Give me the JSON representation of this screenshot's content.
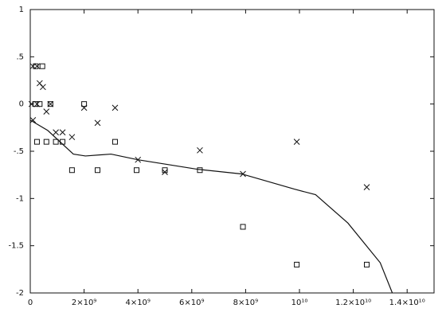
{
  "chart_data": {
    "type": "scatter",
    "xlim": [
      0,
      15000000000
    ],
    "ylim": [
      -2,
      1
    ],
    "xticks": [
      0,
      {
        "value": 2000000000,
        "label": "2×10⁹"
      },
      {
        "value": 4000000000,
        "label": "4×10⁹"
      },
      {
        "value": 6000000000,
        "label": "6×10⁹"
      },
      {
        "value": 8000000000,
        "label": "8×10⁹"
      },
      {
        "value": 10000000000,
        "label": "10¹⁰"
      },
      {
        "value": 12000000000,
        "label": "1.2×10¹⁰"
      },
      {
        "value": 14000000000,
        "label": "1.4×10¹⁰"
      }
    ],
    "yticks": [
      -2,
      -1.5,
      -1,
      {
        "value": -0.5,
        "label": "-.5"
      },
      0,
      {
        "value": 0.5,
        "label": ".5"
      },
      1
    ],
    "series": [
      {
        "mode": "markers",
        "marker": "x",
        "color": "#111111",
        "x": [
          100000000,
          250000000,
          350000000,
          470000000,
          50000000,
          250000000,
          600000000,
          750000000,
          100000000,
          950000000,
          1200000000,
          1550000000,
          2000000000,
          2500000000,
          3150000000,
          4000000000,
          5000000000,
          6300000000,
          7900000000,
          9900000000,
          12500000000
        ],
        "values": [
          0.4,
          0.4,
          0.22,
          0.18,
          0,
          0,
          -0.08,
          0,
          -0.17,
          -0.3,
          -0.3,
          -0.35,
          -0.04,
          -0.2,
          -0.04,
          -0.59,
          -0.72,
          -0.49,
          -0.74,
          -0.4,
          -0.88
        ]
      },
      {
        "mode": "markers",
        "marker": "square",
        "color": "#111111",
        "x": [
          200000000,
          450000000,
          180000000,
          350000000,
          750000000,
          250000000,
          600000000,
          950000000,
          1200000000,
          1550000000,
          2000000000,
          2500000000,
          3150000000,
          3950000000,
          5000000000,
          6300000000,
          7900000000,
          9900000000,
          12500000000
        ],
        "values": [
          0.4,
          0.4,
          0,
          0,
          0,
          -0.4,
          -0.4,
          -0.4,
          -0.4,
          -0.7,
          0,
          -0.7,
          -0.4,
          -0.7,
          -0.7,
          -0.7,
          -1.3,
          -1.7,
          -1.7
        ]
      },
      {
        "mode": "line",
        "color": "#111111",
        "x": [
          0,
          650000000,
          1600000000,
          2050000000,
          3000000000,
          4000000000,
          6200000000,
          7850000000,
          9800000000,
          10600000000,
          11800000000,
          13000000000,
          13450000000
        ],
        "values": [
          -0.17,
          -0.28,
          -0.53,
          -0.55,
          -0.53,
          -0.59,
          -0.69,
          -0.74,
          -0.9,
          -0.96,
          -1.26,
          -1.68,
          -2
        ]
      }
    ]
  }
}
